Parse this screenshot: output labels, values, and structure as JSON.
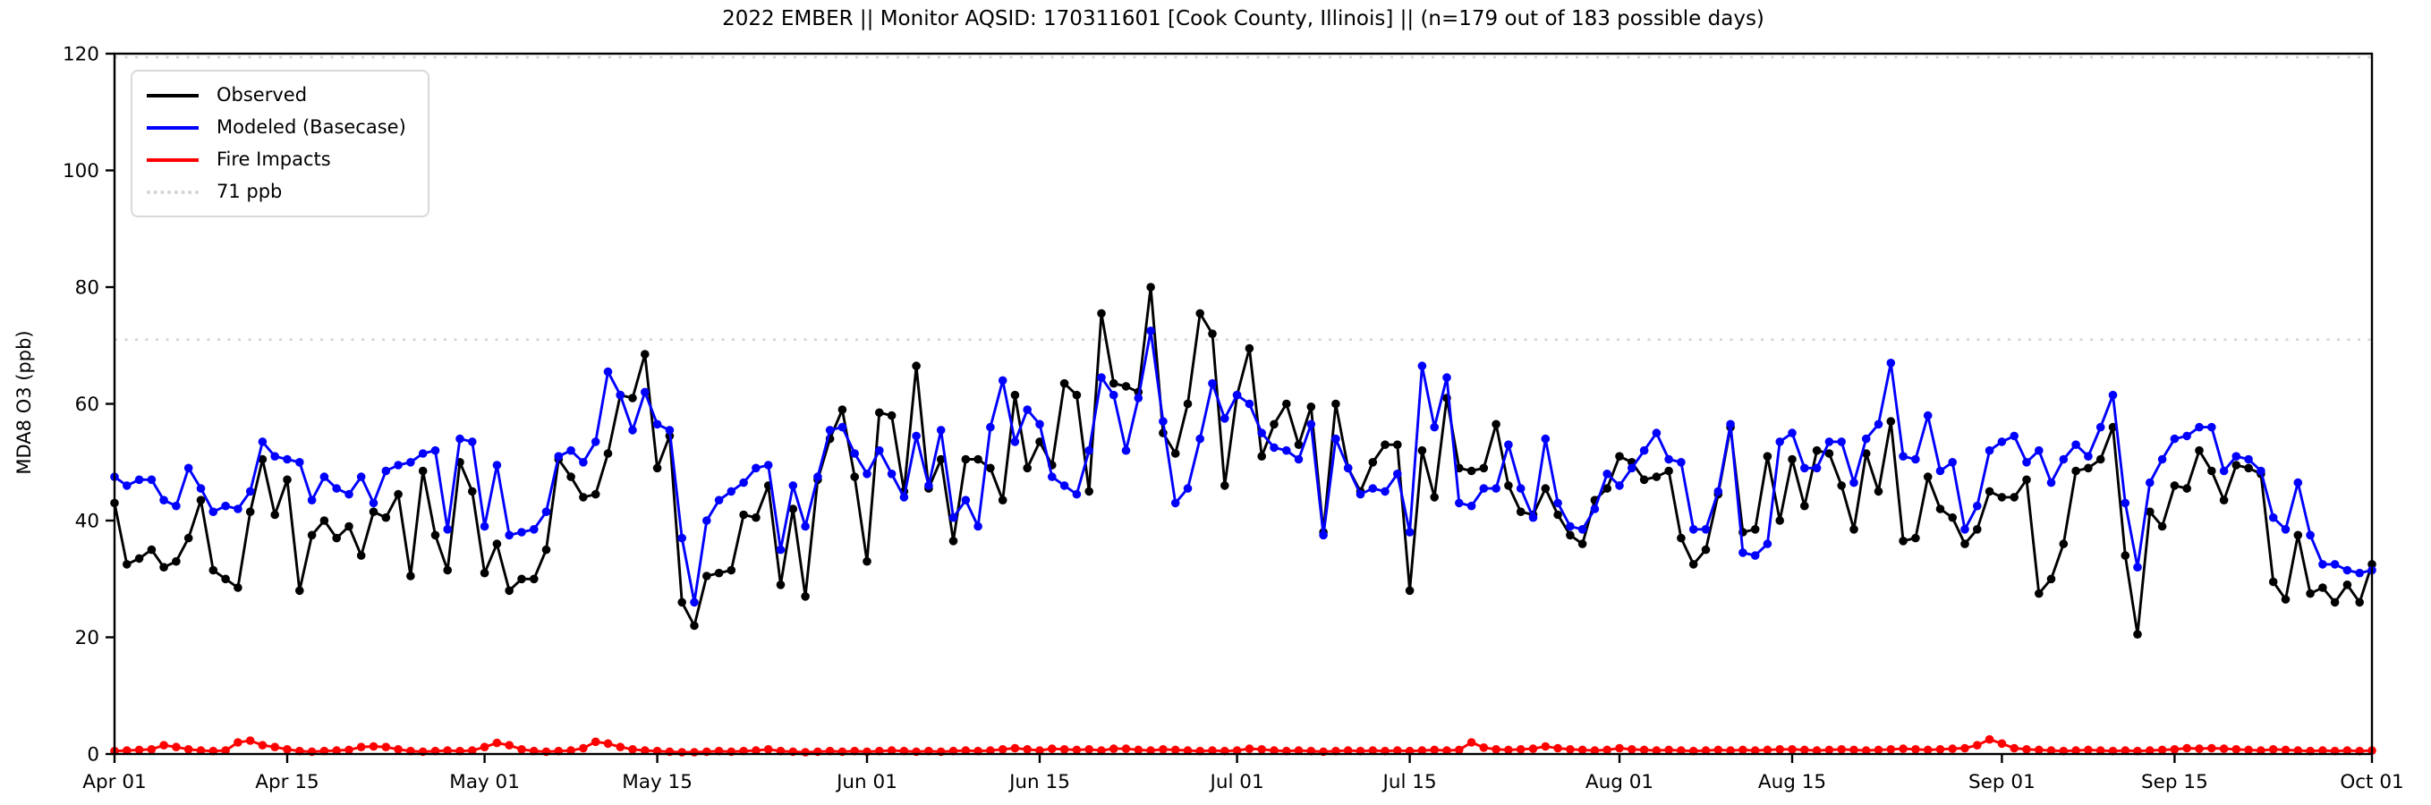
{
  "figure": {
    "title": "2022 EMBER || Monitor AQSID: 170311601 [Cook County, Illinois] || (n=179 out of 183 possible days)",
    "background_color": "#ffffff"
  },
  "axes": {
    "ylabel": "MDA8 O3 (ppb)",
    "ylim": [
      0,
      120
    ],
    "y_ticks": [
      0,
      20,
      40,
      60,
      80,
      100,
      120
    ],
    "x_ticks": [
      {
        "label": "Apr 01",
        "day": 0
      },
      {
        "label": "Apr 15",
        "day": 14
      },
      {
        "label": "May 01",
        "day": 30
      },
      {
        "label": "May 15",
        "day": 44
      },
      {
        "label": "Jun 01",
        "day": 61
      },
      {
        "label": "Jun 15",
        "day": 75
      },
      {
        "label": "Jul 01",
        "day": 91
      },
      {
        "label": "Jul 15",
        "day": 105
      },
      {
        "label": "Aug 01",
        "day": 122
      },
      {
        "label": "Aug 15",
        "day": 136
      },
      {
        "label": "Sep 01",
        "day": 153
      },
      {
        "label": "Sep 15",
        "day": 167
      },
      {
        "label": "Oct 01",
        "day": 183
      }
    ]
  },
  "legend": {
    "items": [
      {
        "label": "Observed",
        "color": "#000000",
        "style": "solid"
      },
      {
        "label": "Modeled (Basecase)",
        "color": "#0000ff",
        "style": "solid"
      },
      {
        "label": "Fire Impacts",
        "color": "#ff0000",
        "style": "solid"
      },
      {
        "label": "71 ppb",
        "color": "#d3d3d3",
        "style": "dotted"
      }
    ]
  },
  "chart_data": {
    "type": "line",
    "x_start_label": "Apr 01",
    "x_end_label": "Oct 01",
    "n_points": 184,
    "x_unit": "day index from Apr 01, 2022",
    "grid": false,
    "legend_position": "upper left",
    "thresholds": [
      {
        "value": 71,
        "label": "71 ppb",
        "color": "#d3d3d3",
        "style": "dotted"
      },
      {
        "value": 119.4,
        "label": "",
        "color": "#d3d3d3",
        "style": "dotted"
      }
    ],
    "series": [
      {
        "name": "Observed",
        "color": "#000000",
        "marker": "circle",
        "values": [
          43,
          32.5,
          33.5,
          35,
          32,
          33,
          37,
          43.5,
          31.5,
          30,
          28.5,
          41.5,
          50.5,
          41,
          47,
          28,
          37.5,
          40,
          37,
          39,
          34,
          41.5,
          40.5,
          44.5,
          30.5,
          48.5,
          37.5,
          31.5,
          50,
          45,
          31,
          36,
          28,
          30,
          30,
          35,
          50.5,
          47.5,
          44,
          44.5,
          51.5,
          61.5,
          61,
          68.5,
          49,
          54.5,
          26,
          22,
          30.5,
          31,
          31.5,
          41,
          40.5,
          46,
          29,
          42,
          27,
          47,
          54,
          59,
          47.5,
          33,
          58.5,
          58,
          45,
          66.5,
          45.5,
          50.5,
          36.5,
          50.5,
          50.5,
          49,
          43.5,
          61.5,
          49,
          53.5,
          49.5,
          63.5,
          61.5,
          45,
          75.5,
          63.5,
          63,
          62,
          80,
          55,
          51.5,
          60,
          75.5,
          72,
          46,
          61.5,
          69.5,
          51,
          56.5,
          60,
          53,
          59.5,
          38,
          60,
          49,
          45,
          50,
          53,
          53,
          28,
          52,
          44,
          61,
          49,
          48.5,
          49,
          56.5,
          46,
          41.5,
          41,
          45.5,
          41,
          37.5,
          36,
          43.5,
          45.5,
          51,
          50,
          47,
          47.5,
          48.5,
          37,
          32.5,
          35,
          44.5,
          56,
          38,
          38.5,
          51,
          40,
          50.5,
          42.5,
          52,
          51.5,
          46,
          38.5,
          51.5,
          45,
          57,
          36.5,
          37,
          47.5,
          42,
          40.5,
          36,
          38.5,
          45,
          44,
          44,
          47,
          27.5,
          30,
          36,
          48.5,
          49,
          50.5,
          56,
          34,
          20.5,
          41.5,
          39,
          46,
          45.5,
          52,
          48.5,
          43.5,
          49.5,
          49,
          48,
          29.5,
          26.5,
          37.5,
          27.5,
          28.5,
          26,
          29,
          26,
          32.5
        ]
      },
      {
        "name": "Modeled (Basecase)",
        "color": "#0000ff",
        "marker": "circle",
        "values": [
          47.5,
          46,
          47,
          47,
          43.5,
          42.5,
          49,
          45.5,
          41.5,
          42.5,
          42,
          45,
          53.5,
          51,
          50.5,
          50,
          43.5,
          47.5,
          45.5,
          44.5,
          47.5,
          43,
          48.5,
          49.5,
          50,
          51.5,
          52,
          38.5,
          54,
          53.5,
          39,
          49.5,
          37.5,
          38,
          38.5,
          41.5,
          51,
          52,
          50,
          53.5,
          65.5,
          61.5,
          55.5,
          62,
          56.5,
          55.5,
          37,
          26,
          40,
          43.5,
          45,
          46.5,
          49,
          49.5,
          35,
          46,
          39,
          47.5,
          55.5,
          56,
          51.5,
          48,
          52,
          48,
          44,
          54.5,
          46,
          55.5,
          40.5,
          43.5,
          39,
          56,
          64,
          53.5,
          59,
          56.5,
          47.5,
          46,
          44.5,
          52,
          64.5,
          61.5,
          52,
          61,
          72.5,
          57,
          43,
          45.5,
          54,
          63.5,
          57.5,
          61.5,
          60,
          55,
          52.5,
          52,
          50.5,
          56.5,
          37.5,
          54,
          49,
          44.5,
          45.5,
          45,
          48,
          38,
          66.5,
          56,
          64.5,
          43,
          42.5,
          45.5,
          45.5,
          53,
          45.5,
          40.5,
          54,
          43,
          39,
          38.5,
          42,
          48,
          46,
          49,
          52,
          55,
          50.5,
          50,
          38.5,
          38.5,
          45,
          56.5,
          34.5,
          34,
          36,
          53.5,
          55,
          49,
          49,
          53.5,
          53.5,
          46.5,
          54,
          56.5,
          67,
          51,
          50.5,
          58,
          48.5,
          50,
          38.5,
          42.5,
          52,
          53.5,
          54.5,
          50,
          52,
          46.5,
          50.5,
          53,
          51,
          56,
          61.5,
          43,
          32,
          46.5,
          50.5,
          54,
          54.5,
          56,
          56,
          48.5,
          51,
          50.5,
          48.5,
          40.5,
          38.5,
          46.5,
          37.5,
          32.5,
          32.5,
          31.5,
          31,
          31.5
        ]
      },
      {
        "name": "Fire Impacts",
        "color": "#ff0000",
        "marker": "circle",
        "values": [
          0.5,
          0.6,
          0.7,
          0.8,
          1.5,
          1.2,
          0.8,
          0.6,
          0.5,
          0.6,
          2.0,
          2.3,
          1.5,
          1.2,
          0.8,
          0.5,
          0.4,
          0.5,
          0.6,
          0.7,
          1.2,
          1.3,
          1.2,
          0.8,
          0.5,
          0.4,
          0.5,
          0.6,
          0.5,
          0.6,
          1.2,
          1.9,
          1.5,
          0.8,
          0.5,
          0.4,
          0.5,
          0.6,
          1.0,
          2.1,
          1.8,
          1.2,
          0.8,
          0.6,
          0.5,
          0.4,
          0.3,
          0.3,
          0.4,
          0.5,
          0.4,
          0.5,
          0.6,
          0.8,
          0.5,
          0.4,
          0.3,
          0.4,
          0.5,
          0.4,
          0.5,
          0.4,
          0.5,
          0.6,
          0.5,
          0.4,
          0.5,
          0.4,
          0.5,
          0.6,
          0.5,
          0.6,
          0.8,
          1.0,
          0.8,
          0.6,
          0.9,
          0.8,
          0.7,
          0.8,
          0.6,
          0.9,
          0.9,
          0.7,
          0.6,
          0.8,
          0.7,
          0.6,
          0.5,
          0.6,
          0.5,
          0.6,
          0.9,
          0.8,
          0.6,
          0.5,
          0.6,
          0.5,
          0.4,
          0.5,
          0.6,
          0.5,
          0.6,
          0.5,
          0.6,
          0.5,
          0.6,
          0.7,
          0.6,
          0.7,
          2.0,
          1.1,
          0.8,
          0.7,
          0.8,
          0.9,
          1.3,
          1.0,
          0.8,
          0.7,
          0.6,
          0.7,
          1.0,
          0.8,
          0.7,
          0.6,
          0.7,
          0.6,
          0.5,
          0.6,
          0.7,
          0.6,
          0.7,
          0.6,
          0.7,
          0.8,
          0.8,
          0.7,
          0.6,
          0.7,
          0.8,
          0.7,
          0.6,
          0.7,
          0.8,
          0.9,
          0.8,
          0.7,
          0.8,
          0.9,
          1.0,
          1.5,
          2.5,
          1.8,
          1.0,
          0.8,
          0.7,
          0.6,
          0.5,
          0.6,
          0.7,
          0.6,
          0.5,
          0.6,
          0.5,
          0.6,
          0.7,
          0.8,
          1.0,
          0.9,
          1.0,
          0.9,
          0.8,
          0.7,
          0.6,
          0.8,
          0.7,
          0.6,
          0.5,
          0.6,
          0.5,
          0.6,
          0.5,
          0.6
        ]
      }
    ]
  }
}
